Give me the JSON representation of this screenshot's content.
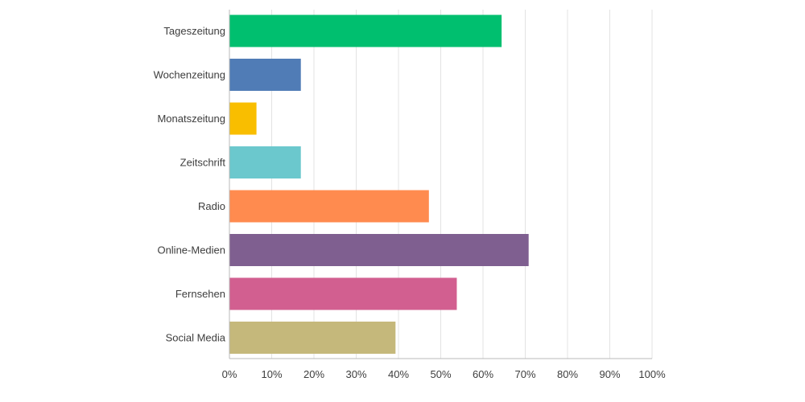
{
  "chart_data": {
    "type": "bar",
    "orientation": "horizontal",
    "categories": [
      "Tageszeitung",
      "Wochenzeitung",
      "Monatszeitung",
      "Zeitschrift",
      "Radio",
      "Online-Medien",
      "Fernsehen",
      "Social Media"
    ],
    "values": [
      64.4,
      16.9,
      6.4,
      16.9,
      47.2,
      70.8,
      53.8,
      39.3
    ],
    "colors": [
      "#00bf6f",
      "#507cb6",
      "#f9be00",
      "#6bc8cd",
      "#ff8b4f",
      "#7f5f90",
      "#d25f90",
      "#c5b87b"
    ],
    "x_ticks": [
      "0%",
      "10%",
      "20%",
      "30%",
      "40%",
      "50%",
      "60%",
      "70%",
      "80%",
      "90%",
      "100%"
    ],
    "xlim": [
      0,
      100
    ],
    "unit": "%",
    "grid": true,
    "legend": "none"
  }
}
